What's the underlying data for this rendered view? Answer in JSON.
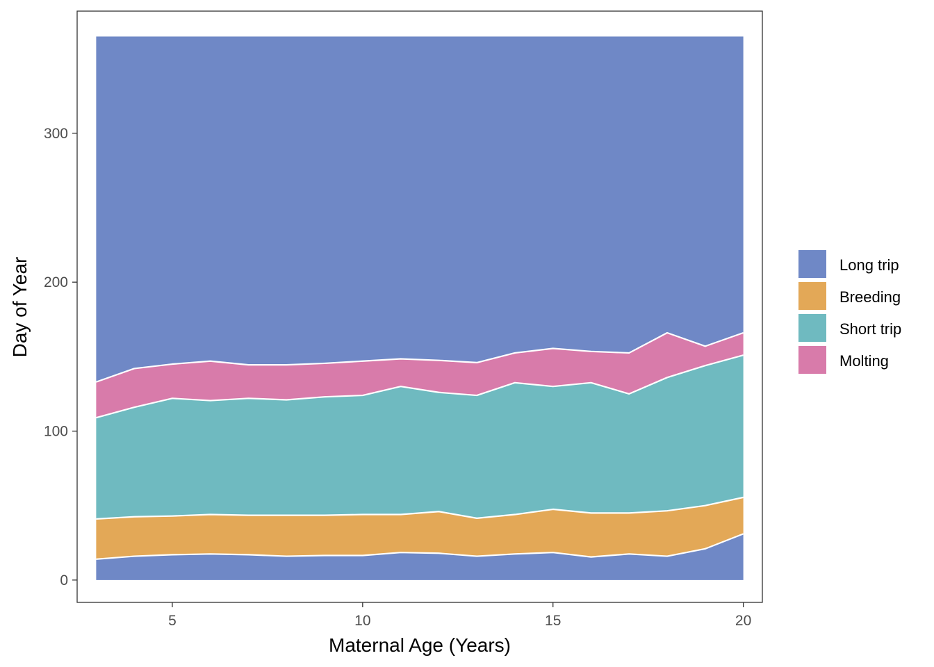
{
  "chart_data": {
    "type": "area",
    "stacked": true,
    "xlabel": "Maternal Age (Years)",
    "ylabel": "Day of Year",
    "xlim": [
      2.5,
      20.5
    ],
    "ylim": [
      -15,
      382
    ],
    "xticks": [
      5,
      10,
      15,
      20
    ],
    "yticks": [
      0,
      100,
      200,
      300
    ],
    "grid": false,
    "legend_position": "right",
    "x": [
      3,
      4,
      5,
      6,
      7,
      8,
      9,
      10,
      11,
      12,
      13,
      14,
      15,
      16,
      17,
      18,
      19,
      20
    ],
    "boundaries": [
      {
        "series": "Long trip",
        "values": [
          14,
          16,
          17,
          17.5,
          17,
          16,
          16.5,
          16.5,
          18.5,
          18,
          16,
          17.5,
          18.5,
          15.5,
          17.5,
          16,
          21,
          31
        ]
      },
      {
        "series": "Breeding",
        "values": [
          41,
          42.5,
          43,
          44,
          43.5,
          43.5,
          43.5,
          44,
          44,
          46,
          41.5,
          44,
          47.5,
          45,
          45,
          46.5,
          50,
          55.5
        ]
      },
      {
        "series": "Short trip",
        "values": [
          109,
          116,
          122,
          120.5,
          122,
          121,
          123,
          124,
          130,
          126,
          124,
          132.5,
          130,
          132.5,
          125,
          136,
          144,
          151
        ]
      },
      {
        "series": "Molting",
        "values": [
          133,
          142,
          145,
          147,
          144.5,
          144.5,
          145.5,
          147,
          148.5,
          147.5,
          146,
          152.5,
          155.5,
          153.5,
          152.5,
          166,
          157,
          166
        ]
      }
    ],
    "year_end": 365,
    "series": [
      {
        "name": "Long trip",
        "color": "#6f88c6"
      },
      {
        "name": "Breeding",
        "color": "#e3a857"
      },
      {
        "name": "Short trip",
        "color": "#6fbac0"
      },
      {
        "name": "Molting",
        "color": "#d87baa"
      }
    ],
    "legend": [
      {
        "label": "Long trip",
        "color": "#6f88c6"
      },
      {
        "label": "Breeding",
        "color": "#e3a857"
      },
      {
        "label": "Short trip",
        "color": "#6fbac0"
      },
      {
        "label": "Molting",
        "color": "#d87baa"
      }
    ]
  }
}
